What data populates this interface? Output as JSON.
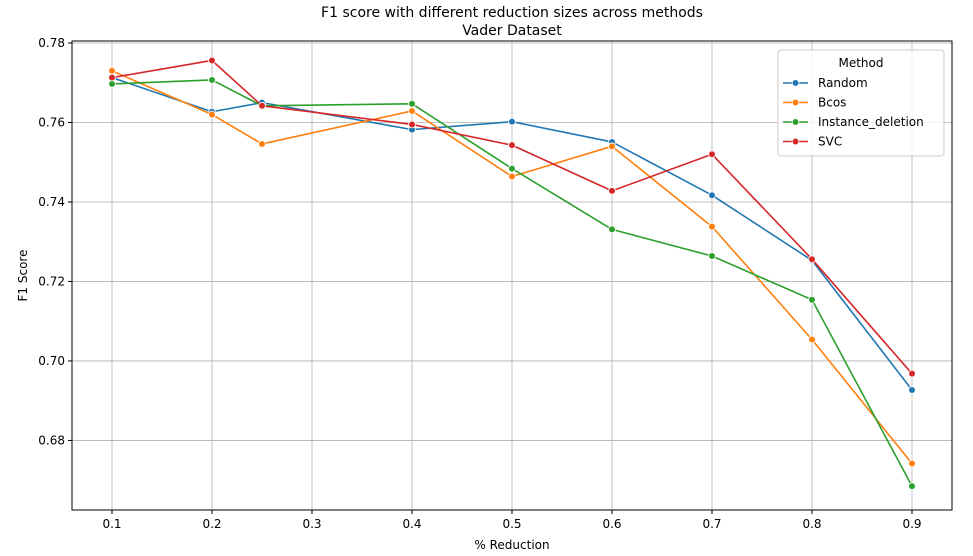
{
  "chart_data": {
    "type": "line",
    "title": "F1 score with different reduction sizes across methods",
    "subtitle": "Vader Dataset",
    "xlabel": "% Reduction",
    "ylabel": "F1 Score",
    "xlim": [
      0.06,
      0.94
    ],
    "ylim": [
      0.6625,
      0.7805
    ],
    "xticks": [
      0.1,
      0.2,
      0.3,
      0.4,
      0.5,
      0.6,
      0.7,
      0.8,
      0.9
    ],
    "xtick_labels": [
      "0.1",
      "0.2",
      "0.3",
      "0.4",
      "0.5",
      "0.6",
      "0.7",
      "0.8",
      "0.9"
    ],
    "yticks": [
      0.68,
      0.7,
      0.72,
      0.74,
      0.76,
      0.78
    ],
    "ytick_labels": [
      "0.68",
      "0.70",
      "0.72",
      "0.74",
      "0.76",
      "0.78"
    ],
    "grid": true,
    "legend": {
      "title": "Method",
      "placement": "top-right"
    },
    "x": [
      0.1,
      0.2,
      0.25,
      0.4,
      0.5,
      0.6,
      0.7,
      0.8,
      0.9
    ],
    "series": [
      {
        "name": "Random",
        "color": "#1f77b4",
        "values": [
          0.7713,
          0.7627,
          0.765,
          0.7582,
          0.7602,
          0.7551,
          0.7417,
          0.7253,
          0.6927
        ]
      },
      {
        "name": "Bcos",
        "color": "#ff7f0e",
        "values": [
          0.773,
          0.762,
          0.7546,
          0.7629,
          0.7464,
          0.754,
          0.7338,
          0.7054,
          0.6742
        ]
      },
      {
        "name": "Instance_deletion",
        "color": "#2ca02c",
        "values": [
          0.7697,
          0.7707,
          0.7642,
          0.7647,
          0.7484,
          0.7331,
          0.7264,
          0.7154,
          0.6685
        ]
      },
      {
        "name": "SVC",
        "color": "#d62728",
        "values": [
          0.7713,
          0.7756,
          0.7642,
          0.7595,
          0.7543,
          0.7428,
          0.752,
          0.7256,
          0.6968
        ]
      }
    ]
  }
}
